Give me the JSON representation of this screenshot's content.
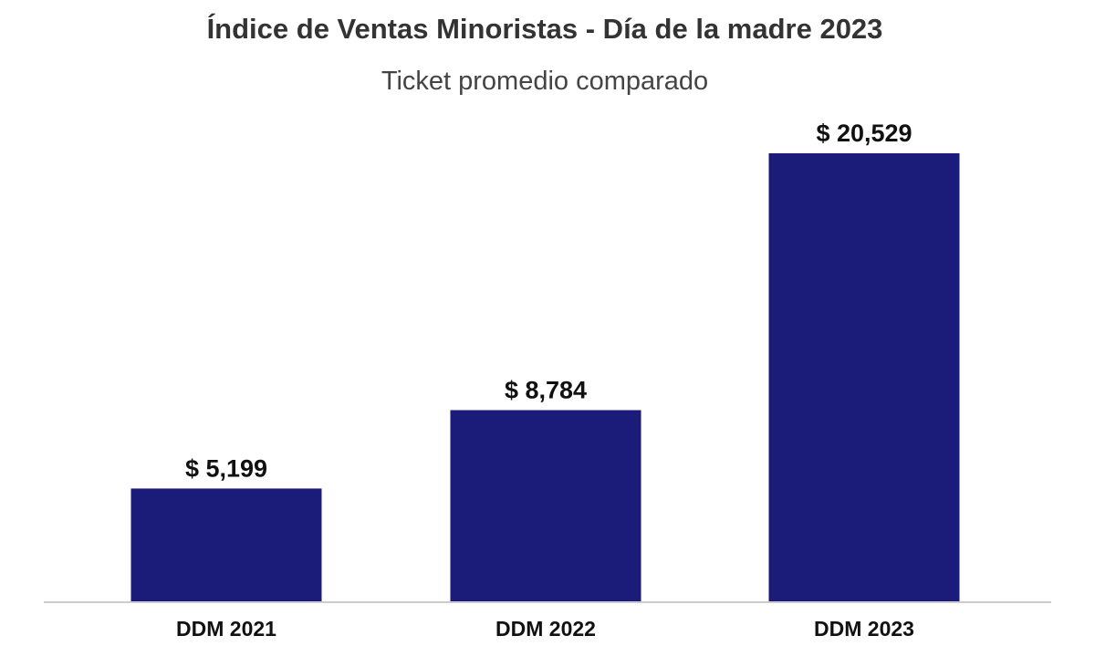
{
  "colors": {
    "bar": "#1b1c79",
    "text": "#111111",
    "axis": "#cccccc"
  },
  "chart_data": {
    "type": "bar",
    "title": "Índice de Ventas Minoristas - Día de la madre 2023",
    "subtitle": "Ticket promedio comparado",
    "categories": [
      "DDM 2021",
      "DDM 2022",
      "DDM 2023"
    ],
    "values": [
      5199,
      8784,
      20529
    ],
    "value_labels": [
      "$ 5,199",
      "$ 8,784",
      "$ 20,529"
    ],
    "xlabel": "",
    "ylabel": "",
    "ylim": [
      0,
      20529
    ],
    "grid": false,
    "legend": "none"
  }
}
